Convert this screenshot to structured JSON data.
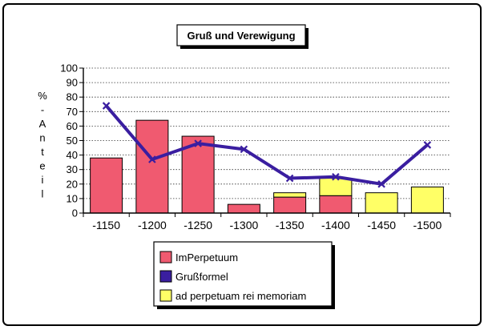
{
  "chart_data": {
    "type": "bar",
    "title": "Gruß und Verewigung",
    "ylabel": "% - Anteil",
    "xlabel": "",
    "ylim": [
      0,
      100
    ],
    "yticks": [
      0,
      10,
      20,
      30,
      40,
      50,
      60,
      70,
      80,
      90,
      100
    ],
    "grid": "horizontal dotted",
    "stacked": true,
    "categories": [
      "-1150",
      "-1200",
      "-1250",
      "-1300",
      "-1350",
      "-1400",
      "-1450",
      "-1500"
    ],
    "series": [
      {
        "name": "ImPerpetuum",
        "type": "bar",
        "color": "#f05a70",
        "values": [
          38,
          64,
          53,
          6,
          11,
          12,
          0,
          0
        ]
      },
      {
        "name": "ad perpetuam rei memoriam",
        "type": "bar",
        "color": "#ffff66",
        "values": [
          0,
          0,
          0,
          0,
          3,
          12,
          14,
          18
        ]
      },
      {
        "name": "Grußformel",
        "type": "line",
        "color": "#3a1ea0",
        "values": [
          74,
          37,
          48,
          44,
          24,
          25,
          20,
          47
        ]
      }
    ],
    "legend_order": [
      "ImPerpetuum",
      "Grußformel",
      "ad perpetuam rei memoriam"
    ],
    "legend_position": "bottom-center"
  }
}
